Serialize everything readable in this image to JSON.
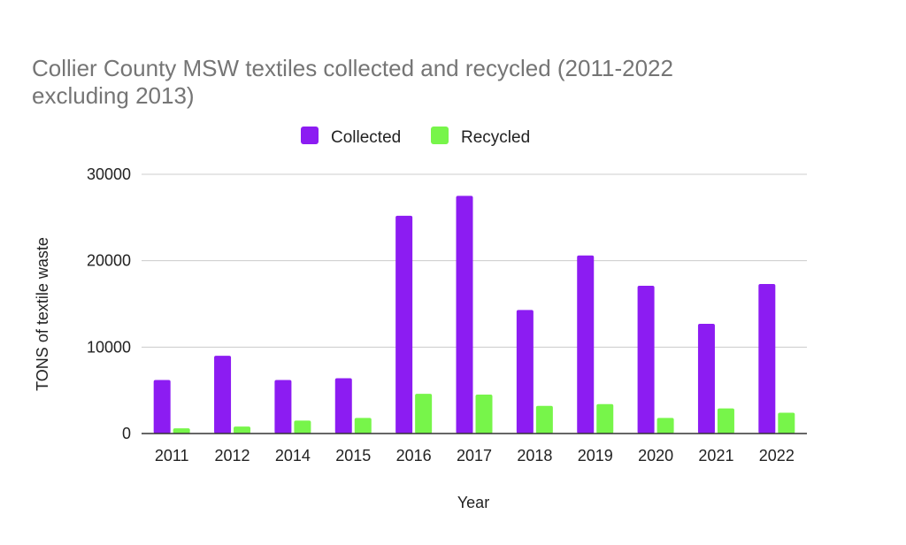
{
  "chart_data": {
    "type": "bar",
    "title_lines": [
      "Collier County MSW textiles collected and recycled (2011-2022",
      "excluding 2013)"
    ],
    "xlabel": "Year",
    "ylabel": "TONS of textile waste",
    "categories": [
      "2011",
      "2012",
      "2014",
      "2015",
      "2016",
      "2017",
      "2018",
      "2019",
      "2020",
      "2021",
      "2022"
    ],
    "series": [
      {
        "name": "Collected",
        "color": "#8c1cf2",
        "values": [
          6200,
          9000,
          6200,
          6400,
          25200,
          27500,
          14300,
          20600,
          17100,
          12700,
          17300
        ]
      },
      {
        "name": "Recycled",
        "color": "#77f54a",
        "values": [
          600,
          800,
          1500,
          1800,
          4600,
          4500,
          3200,
          3400,
          1800,
          2900,
          2400
        ]
      }
    ],
    "ylim": [
      0,
      30000
    ],
    "yticks": [
      "0",
      "10000",
      "20000",
      "30000"
    ],
    "grid": true,
    "legend_position": "top-center"
  }
}
